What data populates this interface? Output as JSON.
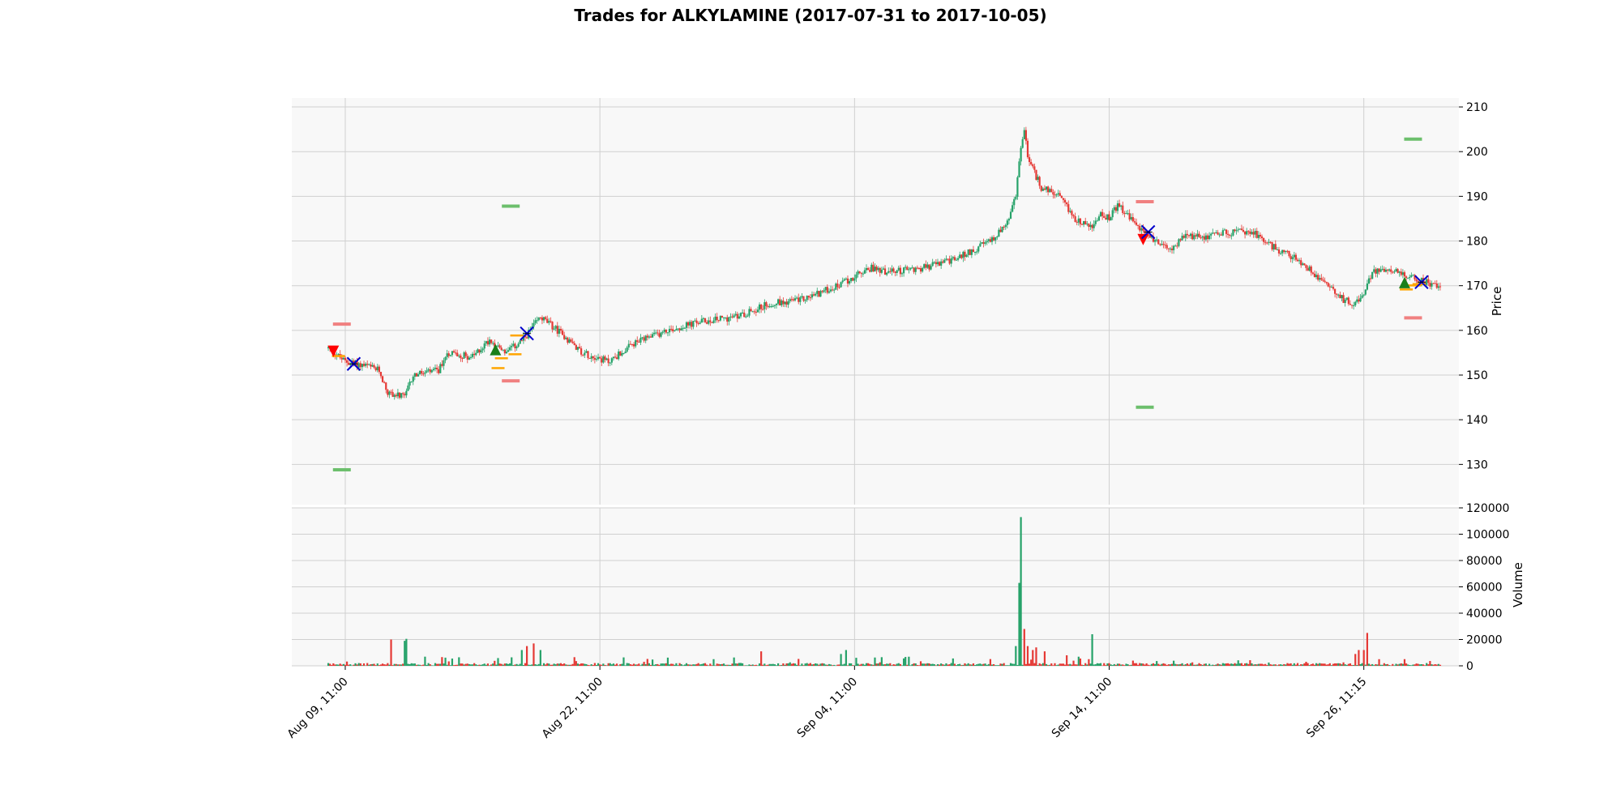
{
  "chart_data": {
    "type": "candlestick",
    "title": "Trades for ALKYLAMINE (2017-07-31 to 2017-10-05)",
    "price_axis": {
      "label": "Price",
      "range": [
        121,
        212
      ],
      "ticks": [
        "130",
        "140",
        "150",
        "160",
        "170",
        "180",
        "190",
        "200",
        "210"
      ]
    },
    "volume_axis": {
      "label": "Volume",
      "range": [
        0,
        120000
      ],
      "ticks": [
        "0",
        "20000",
        "40000",
        "60000",
        "80000",
        "100000",
        "120000"
      ]
    },
    "x_axis": {
      "index_range": [
        -43,
        1332
      ],
      "ticks": [
        {
          "index": 20,
          "label": "Aug 09, 11:00"
        },
        {
          "index": 320,
          "label": "Aug 22, 11:00"
        },
        {
          "index": 620,
          "label": "Sep 04, 11:00"
        },
        {
          "index": 920,
          "label": "Sep 14, 11:00"
        },
        {
          "index": 1220,
          "label": "Sep 26, 11:15"
        }
      ]
    },
    "grid": true,
    "price_path": [
      [
        0,
        156
      ],
      [
        20,
        153
      ],
      [
        45,
        152
      ],
      [
        60,
        151
      ],
      [
        70,
        146
      ],
      [
        90,
        145
      ],
      [
        100,
        150
      ],
      [
        130,
        151
      ],
      [
        140,
        155
      ],
      [
        170,
        154
      ],
      [
        190,
        158
      ],
      [
        210,
        155
      ],
      [
        230,
        158
      ],
      [
        250,
        163
      ],
      [
        270,
        160
      ],
      [
        300,
        155
      ],
      [
        330,
        153
      ],
      [
        360,
        157
      ],
      [
        400,
        160
      ],
      [
        440,
        162
      ],
      [
        480,
        163
      ],
      [
        520,
        166
      ],
      [
        560,
        167
      ],
      [
        600,
        170
      ],
      [
        620,
        172
      ],
      [
        640,
        174
      ],
      [
        660,
        173
      ],
      [
        700,
        174
      ],
      [
        740,
        176
      ],
      [
        760,
        178
      ],
      [
        780,
        180
      ],
      [
        800,
        184
      ],
      [
        810,
        190
      ],
      [
        815,
        200
      ],
      [
        820,
        205
      ],
      [
        825,
        198
      ],
      [
        840,
        192
      ],
      [
        860,
        190
      ],
      [
        880,
        185
      ],
      [
        900,
        183
      ],
      [
        910,
        186
      ],
      [
        920,
        185
      ],
      [
        930,
        188
      ],
      [
        940,
        186
      ],
      [
        960,
        182
      ],
      [
        990,
        178
      ],
      [
        1010,
        181
      ],
      [
        1030,
        181
      ],
      [
        1060,
        182
      ],
      [
        1090,
        182
      ],
      [
        1110,
        179
      ],
      [
        1140,
        176
      ],
      [
        1160,
        173
      ],
      [
        1180,
        170
      ],
      [
        1195,
        167
      ],
      [
        1210,
        166
      ],
      [
        1220,
        168
      ],
      [
        1230,
        173
      ],
      [
        1250,
        174
      ],
      [
        1270,
        172
      ],
      [
        1290,
        171
      ],
      [
        1310,
        170
      ]
    ],
    "volume_spikes": [
      {
        "index": 75,
        "volume": 20000,
        "direction": "down"
      },
      {
        "index": 90,
        "volume": 19000,
        "direction": "up"
      },
      {
        "index": 92,
        "volume": 20500,
        "direction": "up"
      },
      {
        "index": 228,
        "volume": 12000,
        "direction": "up"
      },
      {
        "index": 235,
        "volume": 15000,
        "direction": "down"
      },
      {
        "index": 243,
        "volume": 17000,
        "direction": "down"
      },
      {
        "index": 250,
        "volume": 12000,
        "direction": "up"
      },
      {
        "index": 510,
        "volume": 11000,
        "direction": "down"
      },
      {
        "index": 605,
        "volume": 9000,
        "direction": "up"
      },
      {
        "index": 610,
        "volume": 12000,
        "direction": "up"
      },
      {
        "index": 810,
        "volume": 15000,
        "direction": "up"
      },
      {
        "index": 814,
        "volume": 63000,
        "direction": "up"
      },
      {
        "index": 817,
        "volume": 113000,
        "direction": "up"
      },
      {
        "index": 820,
        "volume": 28000,
        "direction": "down"
      },
      {
        "index": 824,
        "volume": 15000,
        "direction": "down"
      },
      {
        "index": 830,
        "volume": 12000,
        "direction": "down"
      },
      {
        "index": 835,
        "volume": 14000,
        "direction": "down"
      },
      {
        "index": 845,
        "volume": 11000,
        "direction": "down"
      },
      {
        "index": 870,
        "volume": 8000,
        "direction": "down"
      },
      {
        "index": 900,
        "volume": 24000,
        "direction": "up"
      },
      {
        "index": 1210,
        "volume": 9000,
        "direction": "down"
      },
      {
        "index": 1215,
        "volume": 12000,
        "direction": "down"
      },
      {
        "index": 1220,
        "volume": 12000,
        "direction": "down"
      },
      {
        "index": 1225,
        "volume": 25000,
        "direction": "down"
      }
    ],
    "trades": [
      {
        "direction": "short",
        "entry_index": 6,
        "entry_price": 155.5,
        "exit_index": 30,
        "exit_price": 152.5,
        "stop_loss": {
          "index": 16,
          "price": 161.4
        },
        "take_profit": {
          "index": 16,
          "price": 128.8
        },
        "orders": [
          {
            "index": 12,
            "price": 154.3
          }
        ]
      },
      {
        "direction": "long",
        "entry_index": 197,
        "entry_price": 155.5,
        "exit_index": 234,
        "exit_price": 159.3,
        "stop_loss": {
          "index": 215,
          "price": 148.7
        },
        "take_profit": {
          "index": 215,
          "price": 187.8
        },
        "orders": [
          {
            "index": 200,
            "price": 151.6
          },
          {
            "index": 204,
            "price": 153.8
          },
          {
            "index": 220,
            "price": 154.7
          },
          {
            "index": 222,
            "price": 158.9
          }
        ]
      },
      {
        "direction": "short",
        "entry_index": 960,
        "entry_price": 180.5,
        "exit_index": 966,
        "exit_price": 182.0,
        "stop_loss": {
          "index": 962,
          "price": 188.8
        },
        "take_profit": {
          "index": 962,
          "price": 142.8
        },
        "orders": []
      },
      {
        "direction": "long",
        "entry_index": 1268,
        "entry_price": 170.5,
        "exit_index": 1288,
        "exit_price": 170.8,
        "stop_loss": {
          "index": 1278,
          "price": 162.8
        },
        "take_profit": {
          "index": 1278,
          "price": 202.8
        },
        "orders": [
          {
            "index": 1270,
            "price": 169.2
          },
          {
            "index": 1280,
            "price": 170.1
          },
          {
            "index": 1285,
            "price": 170.4
          }
        ]
      }
    ],
    "colors": {
      "up": "#26a269",
      "down": "#e53935",
      "grid": "#d0d0d0",
      "panel_bg": "#f8f8f8",
      "entry_long": "#1a7f1a",
      "entry_short": "#ff0000",
      "exit_marker": "#0000cc",
      "exit_marker2": "#000000",
      "order": "#ffa500",
      "stop_loss": "#f08080",
      "take_profit": "#6cbf6c"
    }
  }
}
